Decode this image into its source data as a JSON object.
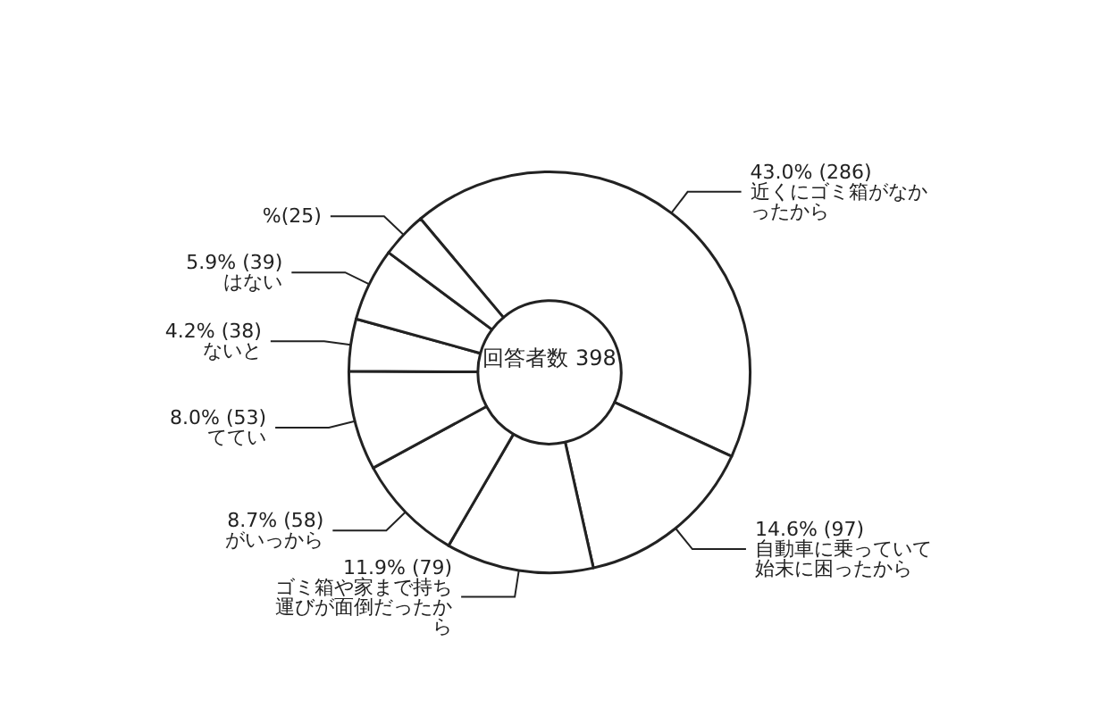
{
  "chart_data": {
    "type": "donut",
    "title": "回答者数 398",
    "categories": [
      "近くにゴミ箱がなかったから",
      "自動車に乗っていて始末に困ったから",
      "ゴミ箱や家まで持ち運びが面倒だったから",
      "がいっから",
      "ててい",
      "ないと",
      "はない",
      "%(25)"
    ],
    "values": [
      43.0,
      14.6,
      11.9,
      8.7,
      8.0,
      4.2,
      5.9,
      3.7
    ],
    "value_labels": [
      "43.0% (286)",
      "14.6% (97)",
      "11.9% (79)",
      "8.7% (58)",
      "8.0% (53)",
      "4.2% (38)",
      "5.9% (39)",
      null
    ],
    "colors": [
      "#ffffff",
      "#ffffff",
      "#ffffff",
      "#ffffff",
      "#ffffff",
      "#ffffff",
      "#ffffff",
      "#ffffff"
    ],
    "legend": false
  }
}
